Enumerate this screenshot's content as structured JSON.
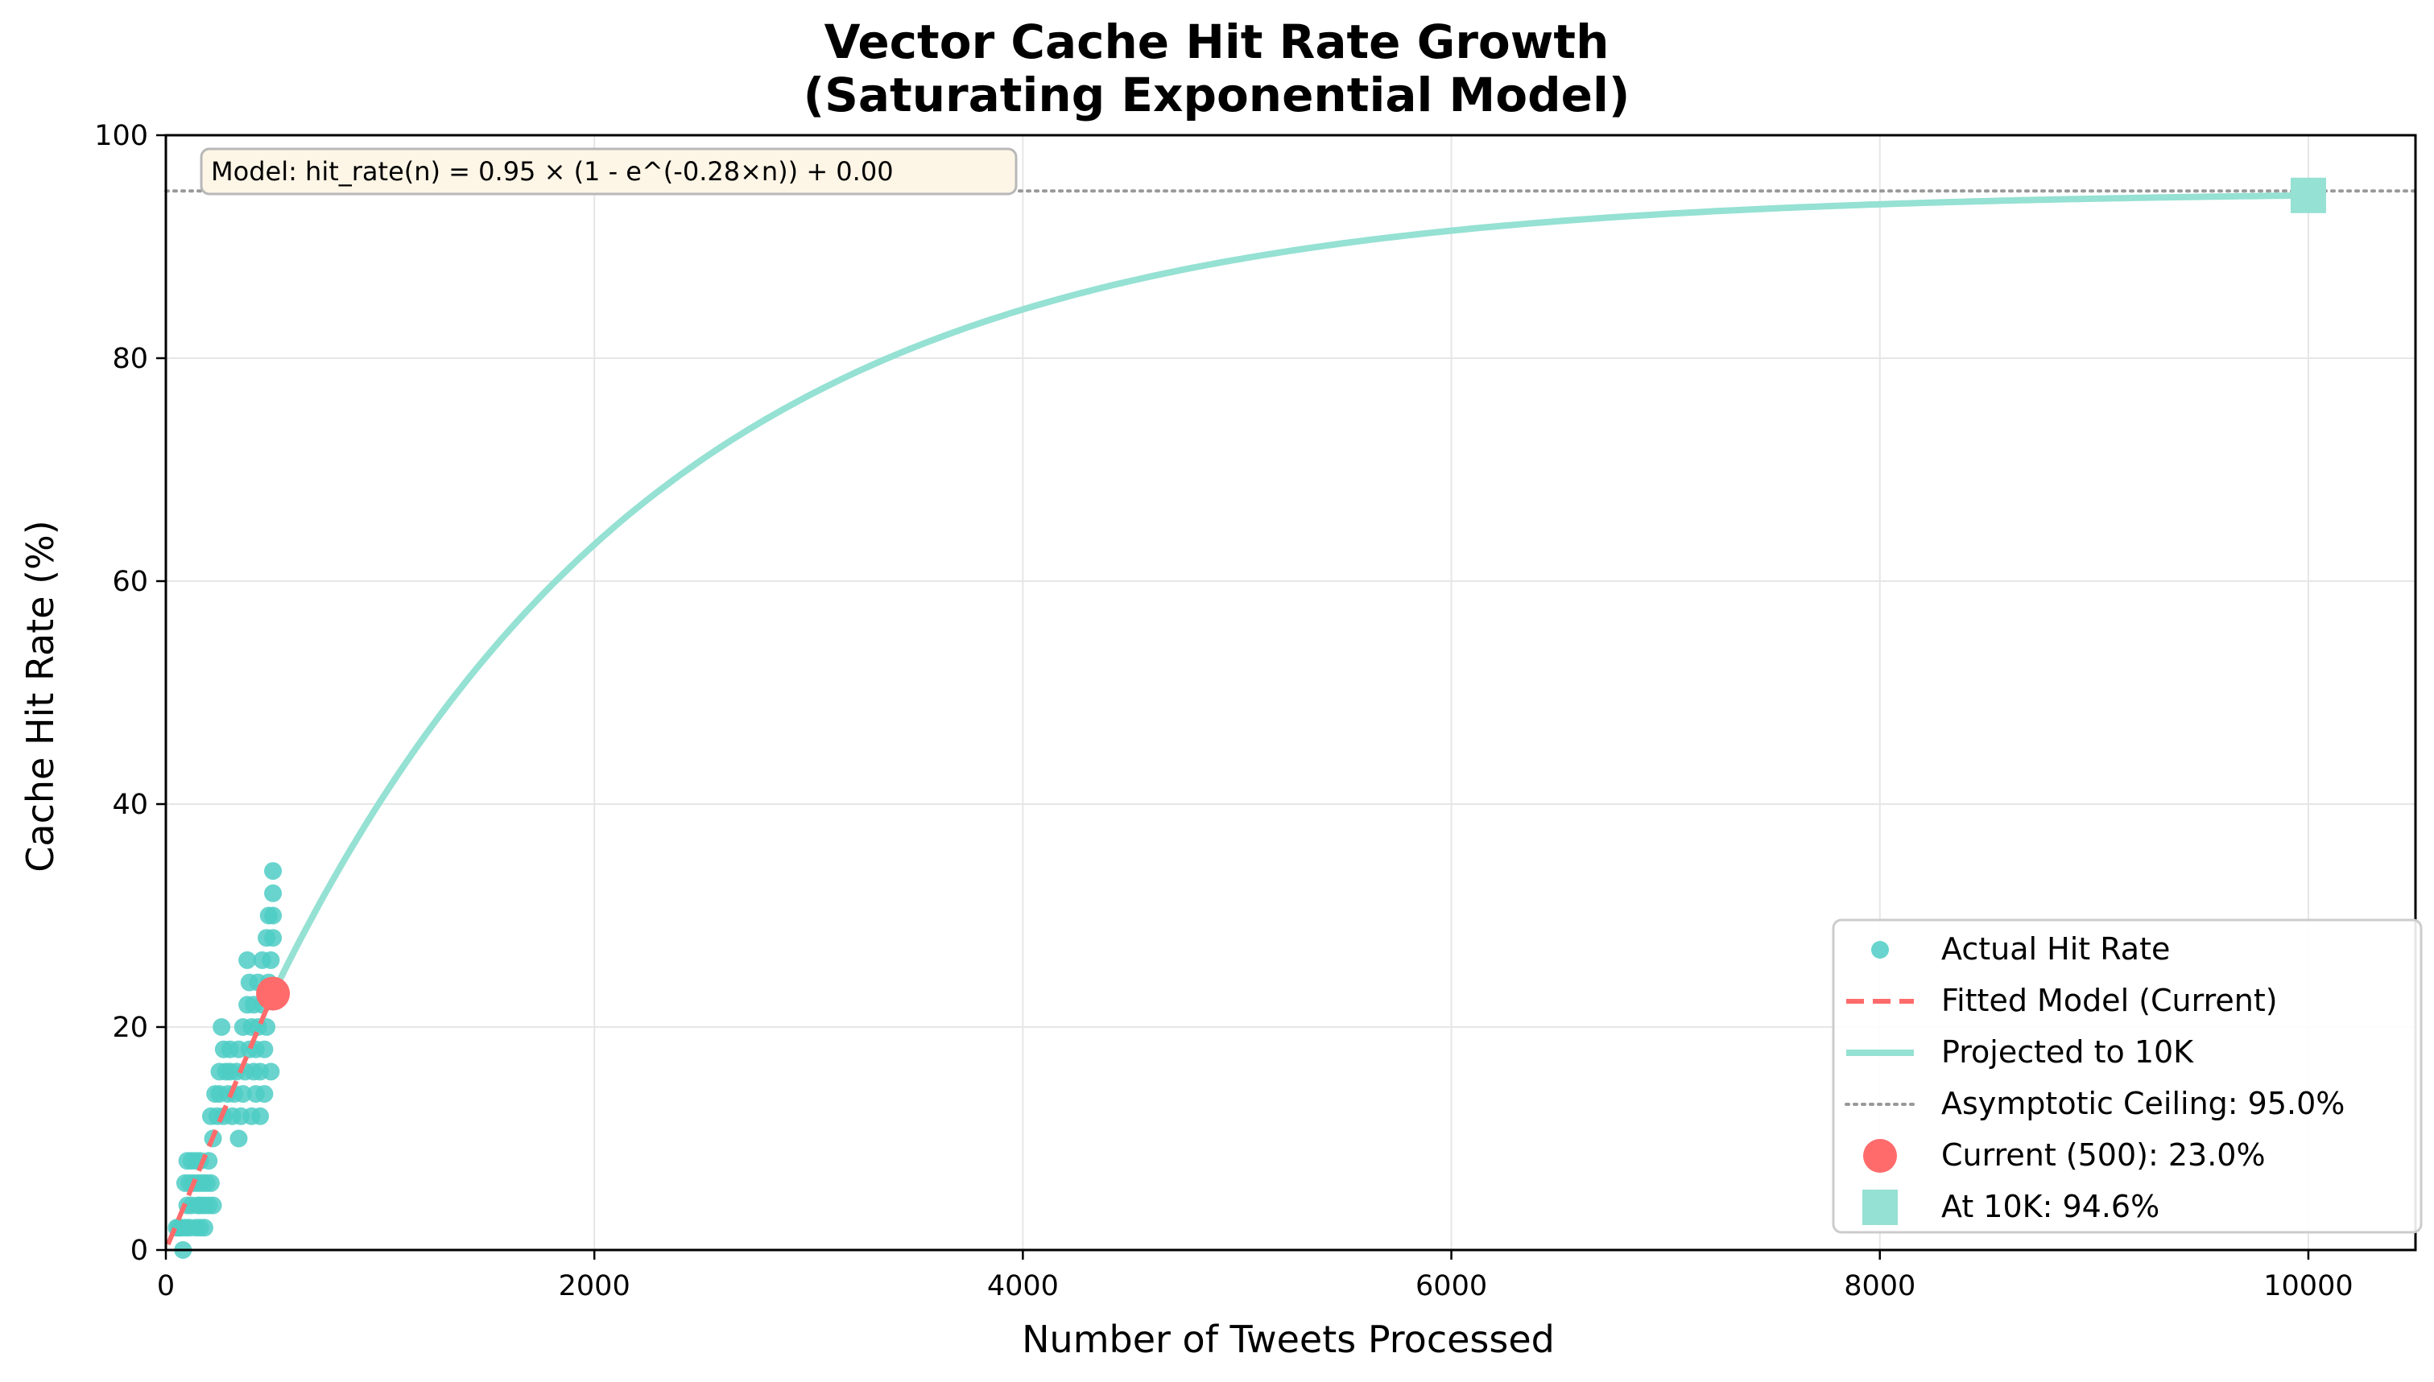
{
  "chart_data": {
    "type": "scatter",
    "title_line1": "Vector Cache Hit Rate Growth",
    "title_line2": "(Saturating Exponential Model)",
    "xlabel": "Number of Tweets Processed",
    "ylabel": "Cache Hit Rate (%)",
    "xlim": [
      0,
      10500
    ],
    "ylim": [
      0,
      100
    ],
    "x_ticks": [
      0,
      2000,
      4000,
      6000,
      8000,
      10000
    ],
    "y_ticks": [
      0,
      20,
      40,
      60,
      80,
      100
    ],
    "grid": true,
    "legend_position": "lower-right",
    "annotation": "Model: hit_rate(n) = 0.95 × (1 - e^(-0.28×n)) + 0.00",
    "model": {
      "ceiling": 95.0,
      "fitted_end_x": 500,
      "fitted_end_y": 23.0,
      "projection_end_x": 10000,
      "projection_end_y": 94.6
    },
    "actual_points": [
      [
        50,
        2
      ],
      [
        60,
        2
      ],
      [
        70,
        2
      ],
      [
        80,
        0
      ],
      [
        90,
        2
      ],
      [
        90,
        6
      ],
      [
        100,
        4
      ],
      [
        100,
        8
      ],
      [
        110,
        2
      ],
      [
        110,
        6
      ],
      [
        120,
        4
      ],
      [
        120,
        8
      ],
      [
        130,
        6
      ],
      [
        140,
        2
      ],
      [
        140,
        8
      ],
      [
        150,
        4
      ],
      [
        150,
        6
      ],
      [
        160,
        2
      ],
      [
        160,
        4
      ],
      [
        160,
        8
      ],
      [
        170,
        6
      ],
      [
        180,
        4
      ],
      [
        180,
        2
      ],
      [
        190,
        6
      ],
      [
        200,
        4
      ],
      [
        200,
        8
      ],
      [
        210,
        6
      ],
      [
        210,
        12
      ],
      [
        220,
        4
      ],
      [
        220,
        10
      ],
      [
        230,
        14
      ],
      [
        240,
        12
      ],
      [
        250,
        16
      ],
      [
        250,
        14
      ],
      [
        260,
        20
      ],
      [
        270,
        18
      ],
      [
        270,
        12
      ],
      [
        280,
        16
      ],
      [
        290,
        14
      ],
      [
        300,
        16
      ],
      [
        300,
        18
      ],
      [
        310,
        12
      ],
      [
        320,
        14
      ],
      [
        330,
        16
      ],
      [
        340,
        10
      ],
      [
        340,
        18
      ],
      [
        350,
        12
      ],
      [
        360,
        14
      ],
      [
        360,
        20
      ],
      [
        370,
        16
      ],
      [
        380,
        22
      ],
      [
        380,
        26
      ],
      [
        390,
        24
      ],
      [
        390,
        18
      ],
      [
        400,
        12
      ],
      [
        400,
        20
      ],
      [
        410,
        16
      ],
      [
        410,
        22
      ],
      [
        420,
        14
      ],
      [
        420,
        18
      ],
      [
        430,
        24
      ],
      [
        430,
        20
      ],
      [
        440,
        12
      ],
      [
        440,
        16
      ],
      [
        450,
        26
      ],
      [
        450,
        22
      ],
      [
        460,
        14
      ],
      [
        460,
        18
      ],
      [
        470,
        28
      ],
      [
        470,
        20
      ],
      [
        480,
        30
      ],
      [
        480,
        24
      ],
      [
        490,
        26
      ],
      [
        490,
        16
      ],
      [
        500,
        34
      ],
      [
        500,
        32
      ],
      [
        500,
        30
      ],
      [
        500,
        28
      ]
    ],
    "colors": {
      "actual": "#4ecdc4",
      "fitted": "#ff6b6b",
      "projected": "#95e1d3",
      "ceiling": "#999999",
      "current_marker": "#ff6b6b",
      "target_marker": "#95e1d3",
      "annotation_bg": "#fdf5e6",
      "grid": "#e6e6e6"
    },
    "legend": [
      {
        "key": "actual",
        "label": "Actual Hit Rate"
      },
      {
        "key": "fitted",
        "label": "Fitted Model (Current)"
      },
      {
        "key": "projected",
        "label": "Projected to 10K"
      },
      {
        "key": "ceiling",
        "label": "Asymptotic Ceiling: 95.0%"
      },
      {
        "key": "current",
        "label": "Current (500): 23.0%"
      },
      {
        "key": "target",
        "label": "At 10K: 94.6%"
      }
    ]
  }
}
